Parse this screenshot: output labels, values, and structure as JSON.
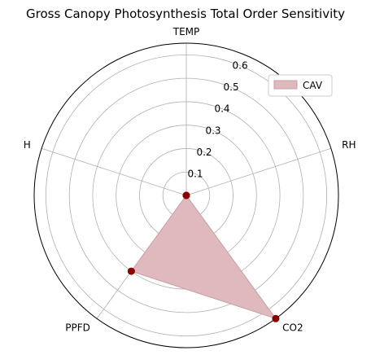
{
  "chart_data": {
    "type": "radar",
    "title": "Gross Canopy Photosynthesis Total Order Sensitivity",
    "categories": [
      "TEMP",
      "RH",
      "CO2",
      "PPFD",
      "H"
    ],
    "series": [
      {
        "name": "CAV",
        "values": [
          0.0,
          0.0,
          0.65,
          0.4,
          0.0
        ],
        "color": "#8b0000",
        "fill_color": "#e0b9bf"
      }
    ],
    "rlim": [
      0,
      0.65
    ],
    "rticks": [
      0.1,
      0.2,
      0.3,
      0.4,
      0.5,
      0.6
    ],
    "rtick_labels": [
      "0.1",
      "0.2",
      "0.3",
      "0.4",
      "0.5",
      "0.6"
    ],
    "grid": true,
    "legend_position": "top-right"
  }
}
